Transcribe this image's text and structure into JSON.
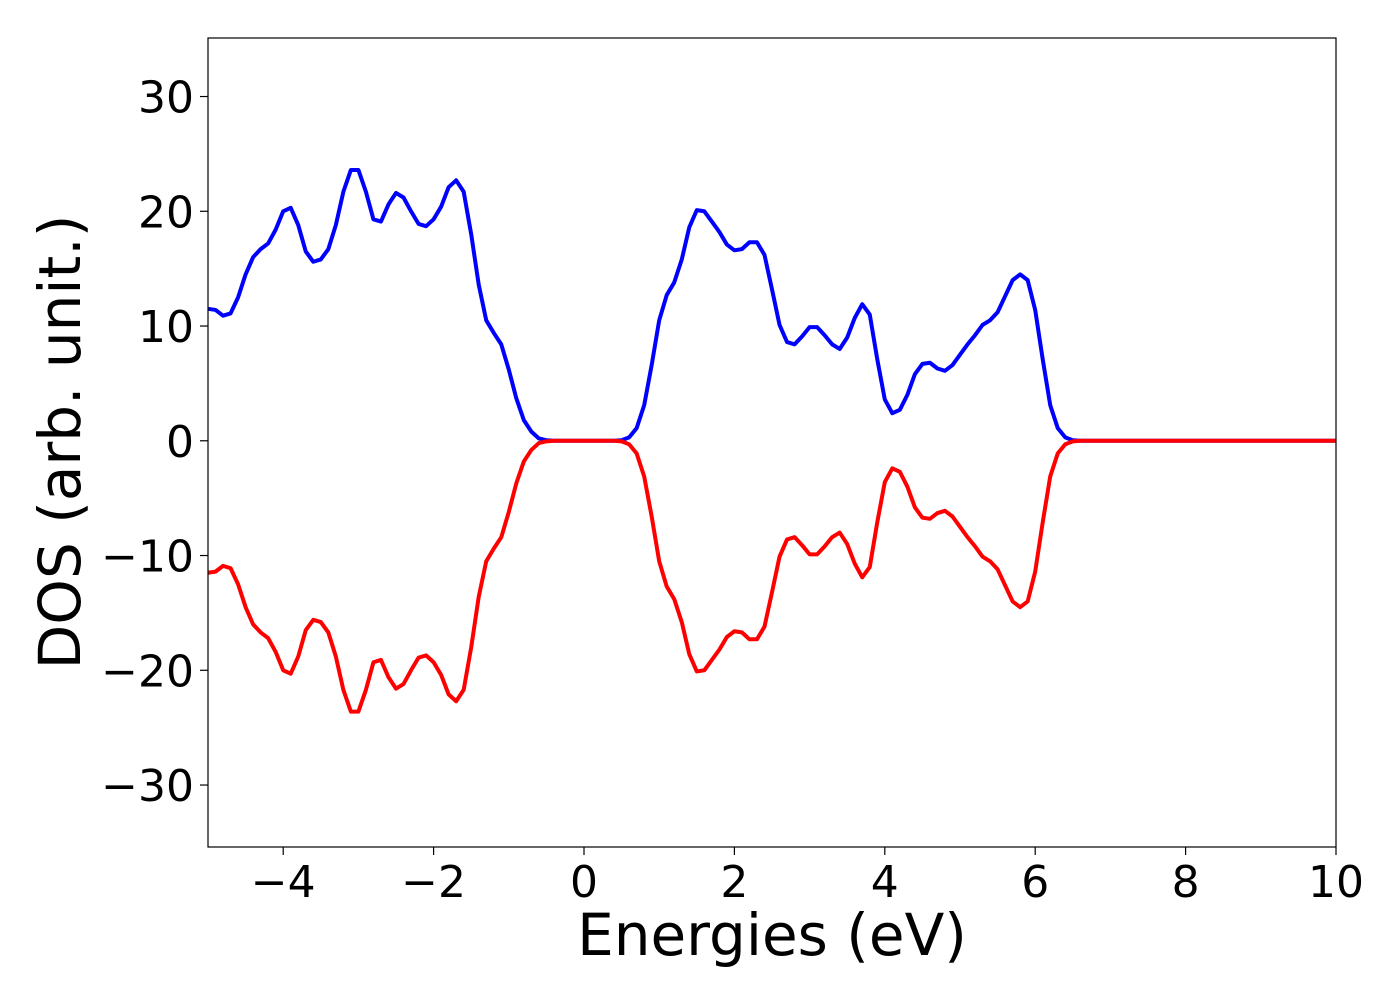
{
  "chart_data": {
    "type": "line",
    "xlabel": "Energies (eV)",
    "ylabel": "DOS (arb. unit.)",
    "xlim": [
      -5,
      10
    ],
    "ylim": [
      -35.4,
      35.1
    ],
    "xticks": [
      {
        "value": -4,
        "label": "−4"
      },
      {
        "value": -2,
        "label": "−2"
      },
      0,
      2,
      4,
      6,
      8,
      10
    ],
    "yticks": [
      {
        "value": -30,
        "label": "−30"
      },
      {
        "value": -20,
        "label": "−20"
      },
      {
        "value": -10,
        "label": "−10"
      },
      0,
      10,
      20,
      30
    ],
    "x": [
      -5,
      -4.9,
      -4.8,
      -4.7,
      -4.6,
      -4.5,
      -4.4,
      -4.3,
      -4.2,
      -4.1,
      -4,
      -3.9,
      -3.8,
      -3.7,
      -3.6,
      -3.5,
      -3.4,
      -3.3,
      -3.2,
      -3.1,
      -3,
      -2.9,
      -2.8,
      -2.7,
      -2.6,
      -2.5,
      -2.4,
      -2.3,
      -2.2,
      -2.1,
      -2,
      -1.9,
      -1.8,
      -1.7,
      -1.6,
      -1.5,
      -1.4,
      -1.3,
      -1.2,
      -1.1,
      -1,
      -0.9,
      -0.8,
      -0.7,
      -0.6,
      -0.5,
      -0.4,
      -0.3,
      -0.2,
      -0.1,
      0,
      0.1,
      0.2,
      0.3,
      0.4,
      0.5,
      0.6,
      0.7,
      0.8,
      0.9,
      1,
      1.1,
      1.2,
      1.3,
      1.4,
      1.5,
      1.6,
      1.7,
      1.8,
      1.9,
      2,
      2.1,
      2.2,
      2.3,
      2.4,
      2.5,
      2.6,
      2.7,
      2.8,
      2.9,
      3,
      3.1,
      3.2,
      3.3,
      3.4,
      3.5,
      3.6,
      3.7,
      3.8,
      3.9,
      4,
      4.1,
      4.2,
      4.3,
      4.4,
      4.5,
      4.6,
      4.7,
      4.8,
      4.9,
      5,
      5.1,
      5.2,
      5.3,
      5.4,
      5.5,
      5.6,
      5.7,
      5.8,
      5.9,
      6,
      6.1,
      6.2,
      6.3,
      6.4,
      6.5,
      6.6,
      10
    ],
    "series": [
      {
        "color": "#0000ff",
        "values": [
          11.5,
          11.4,
          10.9,
          11.1,
          12.5,
          14.5,
          16.0,
          16.7,
          17.2,
          18.4,
          20.0,
          20.3,
          18.8,
          16.5,
          15.6,
          15.8,
          16.7,
          18.8,
          21.7,
          23.6,
          23.6,
          21.7,
          19.3,
          19.1,
          20.6,
          21.6,
          21.2,
          20.0,
          18.9,
          18.7,
          19.3,
          20.4,
          22.1,
          22.7,
          21.7,
          18.0,
          13.6,
          10.5,
          9.4,
          8.4,
          6.2,
          3.7,
          1.8,
          0.8,
          0.2,
          0.05,
          0,
          0,
          0,
          0,
          0,
          0,
          0,
          0,
          0,
          0.05,
          0.3,
          1.1,
          3.1,
          6.6,
          10.5,
          12.7,
          13.8,
          15.8,
          18.6,
          20.1,
          20.0,
          19.1,
          18.2,
          17.1,
          16.6,
          16.7,
          17.3,
          17.3,
          16.2,
          13.2,
          10.1,
          8.6,
          8.4,
          9.1,
          9.9,
          9.9,
          9.2,
          8.4,
          8.0,
          9.0,
          10.7,
          11.9,
          11.0,
          7.1,
          3.6,
          2.4,
          2.7,
          4.0,
          5.8,
          6.7,
          6.8,
          6.3,
          6.1,
          6.6,
          7.5,
          8.4,
          9.2,
          10.1,
          10.5,
          11.2,
          12.6,
          14.0,
          14.5,
          14.0,
          11.4,
          7.1,
          3.1,
          1.1,
          0.3,
          0.05,
          0,
          0
        ]
      },
      {
        "color": "#ff0000",
        "values": [
          -11.5,
          -11.4,
          -10.9,
          -11.1,
          -12.5,
          -14.5,
          -16.0,
          -16.7,
          -17.2,
          -18.4,
          -20.0,
          -20.3,
          -18.8,
          -16.5,
          -15.6,
          -15.8,
          -16.7,
          -18.8,
          -21.7,
          -23.6,
          -23.6,
          -21.7,
          -19.3,
          -19.1,
          -20.6,
          -21.6,
          -21.2,
          -20.0,
          -18.9,
          -18.7,
          -19.3,
          -20.4,
          -22.1,
          -22.7,
          -21.7,
          -18.0,
          -13.6,
          -10.5,
          -9.4,
          -8.4,
          -6.2,
          -3.7,
          -1.8,
          -0.8,
          -0.2,
          -0.05,
          0,
          0,
          0,
          0,
          0,
          0,
          0,
          0,
          0,
          -0.05,
          -0.3,
          -1.1,
          -3.1,
          -6.6,
          -10.5,
          -12.7,
          -13.8,
          -15.8,
          -18.6,
          -20.1,
          -20.0,
          -19.1,
          -18.2,
          -17.1,
          -16.6,
          -16.7,
          -17.3,
          -17.3,
          -16.2,
          -13.2,
          -10.1,
          -8.6,
          -8.4,
          -9.1,
          -9.9,
          -9.9,
          -9.2,
          -8.4,
          -8.0,
          -9.0,
          -10.7,
          -11.9,
          -11.0,
          -7.1,
          -3.6,
          -2.4,
          -2.7,
          -4.0,
          -5.8,
          -6.7,
          -6.8,
          -6.3,
          -6.1,
          -6.6,
          -7.5,
          -8.4,
          -9.2,
          -10.1,
          -10.5,
          -11.2,
          -12.6,
          -14.0,
          -14.5,
          -14.0,
          -11.4,
          -7.1,
          -3.1,
          -1.1,
          -0.3,
          -0.05,
          0,
          0
        ]
      }
    ]
  }
}
